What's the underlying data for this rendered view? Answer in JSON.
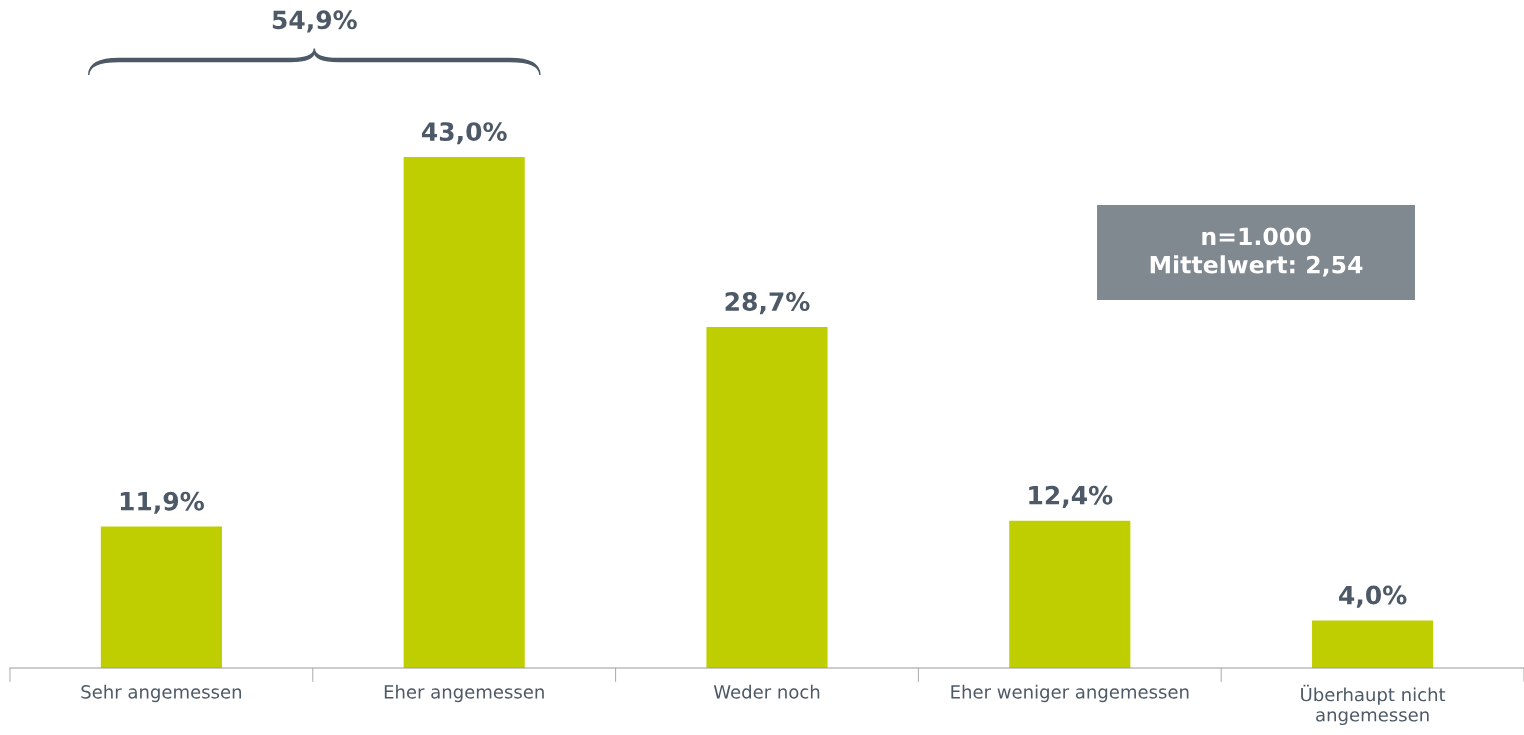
{
  "chart_data": {
    "type": "bar",
    "categories": [
      "Sehr angemessen",
      "Eher angemessen",
      "Weder noch",
      "Eher weniger angemessen",
      "Überhaupt nicht\nangemessen"
    ],
    "values": [
      11.9,
      43.0,
      28.7,
      12.4,
      4.0
    ],
    "value_labels": [
      "11,9%",
      "43,0%",
      "28,7%",
      "12,4%",
      "4,0%"
    ],
    "color": "#bfce00",
    "grid": false,
    "legend": false,
    "annotations": [
      "54,9%",
      "n=1.000\nMittelwert: 2,54"
    ]
  }
}
